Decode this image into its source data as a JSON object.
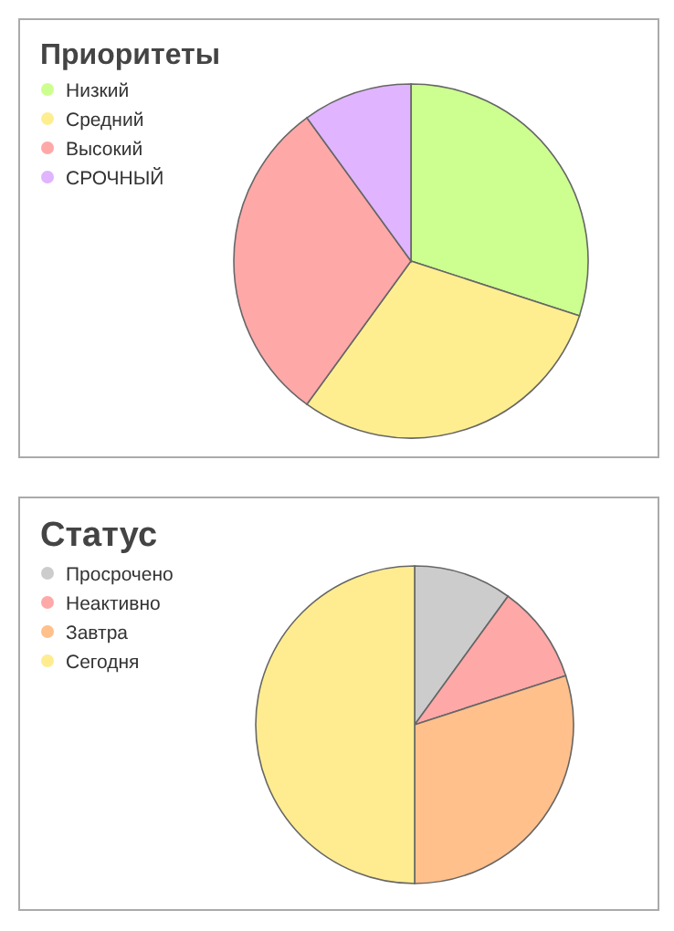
{
  "chart_data": [
    {
      "type": "pie",
      "title": "Приоритеты",
      "categories": [
        "Низкий",
        "Средний",
        "Высокий",
        "СРОЧНЫЙ"
      ],
      "values": [
        30,
        30,
        30,
        10
      ],
      "colors": [
        "#ccff90",
        "#ffee90",
        "#ffa8a8",
        "#e0b4ff"
      ],
      "legend": "top left"
    },
    {
      "type": "pie",
      "title": "Статус",
      "categories": [
        "Просрочено",
        "Неактивно",
        "Завтра",
        "Сегодня"
      ],
      "values": [
        10,
        10,
        30,
        50
      ],
      "colors": [
        "#cccccc",
        "#ffa8a8",
        "#ffc08c",
        "#ffec90"
      ],
      "legend": "top left"
    }
  ]
}
